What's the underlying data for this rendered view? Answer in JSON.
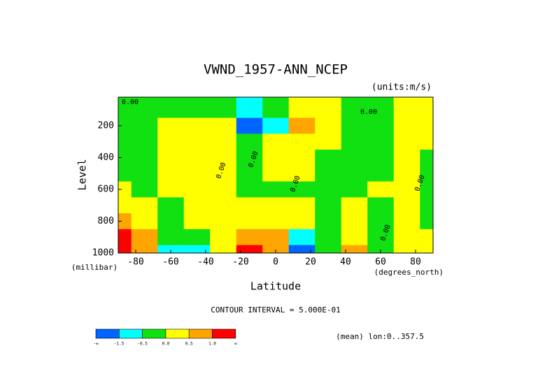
{
  "chart_data": {
    "type": "contour",
    "title": "VWND_1957-ANN_NCEP",
    "units_label": "(units:m/s)",
    "y_label": "Level",
    "y_unit_label": "(millibar)",
    "x_label": "Latitude",
    "x_unit_label": "(degrees_north)",
    "interval_label": "CONTOUR INTERVAL = 5.000E-01",
    "footer_label": "(mean) lon:0..357.5",
    "xlim": [
      -90,
      90
    ],
    "ylim": [
      1000,
      20
    ],
    "xticks": [
      -80,
      -60,
      -40,
      -20,
      0,
      20,
      40,
      60,
      80
    ],
    "yticks": [
      200,
      400,
      600,
      800,
      1000
    ],
    "x": [
      -90,
      -75,
      -60,
      -45,
      -30,
      -15,
      0,
      15,
      30,
      45,
      60,
      75,
      90
    ],
    "y": [
      100,
      200,
      300,
      400,
      500,
      600,
      700,
      800,
      900,
      1000
    ],
    "z": [
      [
        -0.2,
        -0.2,
        -0.2,
        -0.1,
        -0.1,
        -0.6,
        -0.3,
        0.2,
        0.2,
        -0.1,
        -0.1,
        0.2,
        0.2
      ],
      [
        -0.2,
        -0.2,
        0.1,
        0.2,
        0.1,
        -1.8,
        -0.8,
        0.7,
        0.2,
        -0.2,
        -0.2,
        0.2,
        0.2
      ],
      [
        -0.2,
        -0.2,
        0.2,
        0.2,
        0.1,
        -0.2,
        0.2,
        0.2,
        0.2,
        -0.2,
        -0.2,
        0.2,
        0.1
      ],
      [
        -0.2,
        -0.2,
        0.2,
        0.2,
        0.2,
        -0.2,
        0.2,
        0.2,
        -0.1,
        -0.2,
        -0.2,
        0.2,
        -0.1
      ],
      [
        -0.2,
        -0.2,
        0.2,
        0.2,
        0.2,
        -0.2,
        0.2,
        0.1,
        -0.2,
        -0.2,
        -0.2,
        0.2,
        -0.1
      ],
      [
        0.2,
        -0.2,
        0.2,
        0.2,
        0.2,
        -0.1,
        -0.2,
        -0.1,
        -0.2,
        -0.2,
        0.2,
        0.2,
        -0.1
      ],
      [
        0.3,
        0.2,
        -0.2,
        0.2,
        0.2,
        0.2,
        0.1,
        0.2,
        -0.2,
        0.2,
        -0.2,
        0.2,
        -0.1
      ],
      [
        0.8,
        0.2,
        -0.2,
        0.2,
        0.2,
        0.1,
        0.2,
        0.2,
        -0.2,
        0.2,
        -0.2,
        0.2,
        -0.2
      ],
      [
        1.2,
        0.6,
        -0.2,
        -0.3,
        0.2,
        0.8,
        0.6,
        -0.6,
        -0.2,
        0.2,
        -0.2,
        0.2,
        0.2
      ],
      [
        1.5,
        0.8,
        -0.6,
        -1.0,
        0.3,
        1.3,
        0.7,
        -1.7,
        -0.2,
        0.7,
        -0.2,
        0.2,
        0.2
      ]
    ],
    "contour_labels": [
      "0.00",
      "0.00",
      "0.00",
      "0.00",
      "0.00",
      "0.00",
      "0.00"
    ],
    "levels": [
      -1.5,
      -0.5,
      {
        "value": 0,
        "label": "0.0"
      },
      0.5,
      {
        "value": 1,
        "label": "1.0"
      }
    ],
    "low_label": "-∞",
    "high_label": "∞",
    "colors": [
      "#0064ff",
      "#00ffff",
      "#11e011",
      "#ffff00",
      "#ffa500",
      "#ff0000"
    ]
  }
}
